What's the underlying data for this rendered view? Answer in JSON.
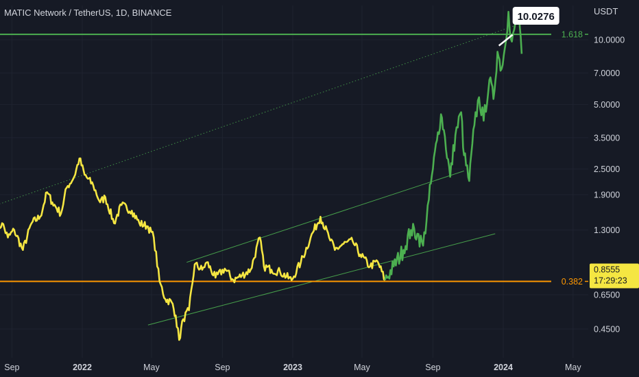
{
  "header": {
    "title": "MATIC Network / TetherUS, 1D, BINANCE"
  },
  "chart_data": {
    "type": "line",
    "title": "MATIC Network / TetherUS, 1D, BINANCE",
    "y_unit": "USDT",
    "y_scale": "log",
    "ylim": [
      0.38,
      14.0
    ],
    "x_tick_labels": [
      "Sep",
      "2022",
      "May",
      "Sep",
      "2023",
      "May",
      "Sep",
      "2024",
      "May"
    ],
    "x_tick_dates": [
      "2021-09-01",
      "2022-01-01",
      "2022-05-01",
      "2022-09-01",
      "2023-01-01",
      "2023-05-01",
      "2023-09-01",
      "2024-01-01",
      "2024-05-01"
    ],
    "x_range": [
      "2021-08-05",
      "2024-06-10"
    ],
    "y_ticks": [
      10.0,
      7.0,
      5.0,
      3.5,
      2.5,
      1.9,
      1.3,
      0.65,
      0.45
    ],
    "y_tick_labels": [
      "10.0000",
      "7.0000",
      "5.0000",
      "3.5000",
      "2.5000",
      "1.9000",
      "1.3000",
      "0.6500",
      "0.4500"
    ],
    "series": [
      {
        "color": "#f5e642",
        "points": [
          [
            "2021-08-05",
            1.28
          ],
          [
            "2021-08-15",
            1.4
          ],
          [
            "2021-08-25",
            1.2
          ],
          [
            "2021-09-05",
            1.3
          ],
          [
            "2021-09-20",
            1.05
          ],
          [
            "2021-10-05",
            1.4
          ],
          [
            "2021-10-20",
            1.5
          ],
          [
            "2021-11-01",
            1.95
          ],
          [
            "2021-11-10",
            1.75
          ],
          [
            "2021-11-25",
            1.55
          ],
          [
            "2021-12-05",
            2.05
          ],
          [
            "2021-12-18",
            2.3
          ],
          [
            "2021-12-27",
            2.8
          ],
          [
            "2022-01-05",
            2.35
          ],
          [
            "2022-01-20",
            2.1
          ],
          [
            "2022-02-01",
            1.75
          ],
          [
            "2022-02-10",
            1.85
          ],
          [
            "2022-02-25",
            1.4
          ],
          [
            "2022-03-10",
            1.7
          ],
          [
            "2022-03-28",
            1.6
          ],
          [
            "2022-04-10",
            1.4
          ],
          [
            "2022-04-25",
            1.35
          ],
          [
            "2022-05-05",
            1.2
          ],
          [
            "2022-05-15",
            0.75
          ],
          [
            "2022-05-25",
            0.62
          ],
          [
            "2022-06-05",
            0.6
          ],
          [
            "2022-06-12",
            0.52
          ],
          [
            "2022-06-18",
            0.4
          ],
          [
            "2022-06-25",
            0.5
          ],
          [
            "2022-07-05",
            0.55
          ],
          [
            "2022-07-15",
            0.9
          ],
          [
            "2022-07-28",
            0.85
          ],
          [
            "2022-08-05",
            0.92
          ],
          [
            "2022-08-20",
            0.78
          ],
          [
            "2022-09-05",
            0.86
          ],
          [
            "2022-09-20",
            0.76
          ],
          [
            "2022-10-05",
            0.8
          ],
          [
            "2022-10-20",
            0.85
          ],
          [
            "2022-11-05",
            1.2
          ],
          [
            "2022-11-12",
            0.88
          ],
          [
            "2022-11-25",
            0.85
          ],
          [
            "2022-12-10",
            0.83
          ],
          [
            "2022-12-30",
            0.76
          ],
          [
            "2023-01-15",
            0.92
          ],
          [
            "2023-02-01",
            1.2
          ],
          [
            "2023-02-18",
            1.5
          ],
          [
            "2023-03-05",
            1.2
          ],
          [
            "2023-03-15",
            1.05
          ],
          [
            "2023-03-30",
            1.12
          ],
          [
            "2023-04-15",
            1.15
          ],
          [
            "2023-04-28",
            1.0
          ],
          [
            "2023-05-15",
            0.88
          ],
          [
            "2023-05-28",
            0.93
          ],
          [
            "2023-06-10",
            0.76
          ]
        ]
      },
      {
        "color": "#4caf50",
        "points": [
          [
            "2023-06-10",
            0.76
          ],
          [
            "2023-06-25",
            0.88
          ],
          [
            "2023-07-12",
            1.05
          ],
          [
            "2023-07-25",
            1.3
          ],
          [
            "2023-08-05",
            1.25
          ],
          [
            "2023-08-15",
            1.1
          ],
          [
            "2023-08-25",
            1.8
          ],
          [
            "2023-09-01",
            2.5
          ],
          [
            "2023-09-08",
            3.4
          ],
          [
            "2023-09-15",
            4.5
          ],
          [
            "2023-09-20",
            3.8
          ],
          [
            "2023-10-01",
            2.3
          ],
          [
            "2023-10-10",
            3.6
          ],
          [
            "2023-10-20",
            4.6
          ],
          [
            "2023-10-25",
            2.9
          ],
          [
            "2023-11-03",
            2.2
          ],
          [
            "2023-11-12",
            4.0
          ],
          [
            "2023-11-20",
            5.4
          ],
          [
            "2023-11-28",
            4.2
          ],
          [
            "2023-12-08",
            6.5
          ],
          [
            "2023-12-15",
            5.3
          ],
          [
            "2023-12-22",
            8.8
          ],
          [
            "2023-12-29",
            7.3
          ],
          [
            "2024-01-04",
            9.2
          ],
          [
            "2024-01-10",
            13.5
          ],
          [
            "2024-01-16",
            9.8
          ],
          [
            "2024-01-22",
            12.0
          ],
          [
            "2024-01-28",
            13.3
          ],
          [
            "2024-02-02",
            8.6
          ]
        ]
      }
    ],
    "annotations": {
      "fib_1618": {
        "price": 10.6,
        "label": "1.618",
        "color": "#4caf50"
      },
      "fib_0382": {
        "price": 0.75,
        "label": "0.382",
        "color": "#ff9800"
      },
      "dotted_trend": {
        "from": [
          "2021-08-05",
          1.7
        ],
        "to": [
          "2024-01-20",
          11.6
        ],
        "color": "#4caf50"
      },
      "channel_upper": {
        "from": [
          "2022-07-01",
          0.92
        ],
        "to": [
          "2023-10-25",
          2.45
        ],
        "color": "#4caf50"
      },
      "channel_lower": {
        "from": [
          "2022-04-25",
          0.47
        ],
        "to": [
          "2023-12-18",
          1.25
        ],
        "color": "#4caf50"
      },
      "price_callout": {
        "label": "10.0276",
        "date": "2024-01-03",
        "price": 10.4
      },
      "last_price": {
        "price": 0.85,
        "label": "0.8555",
        "countdown": "17:29:23"
      }
    }
  }
}
